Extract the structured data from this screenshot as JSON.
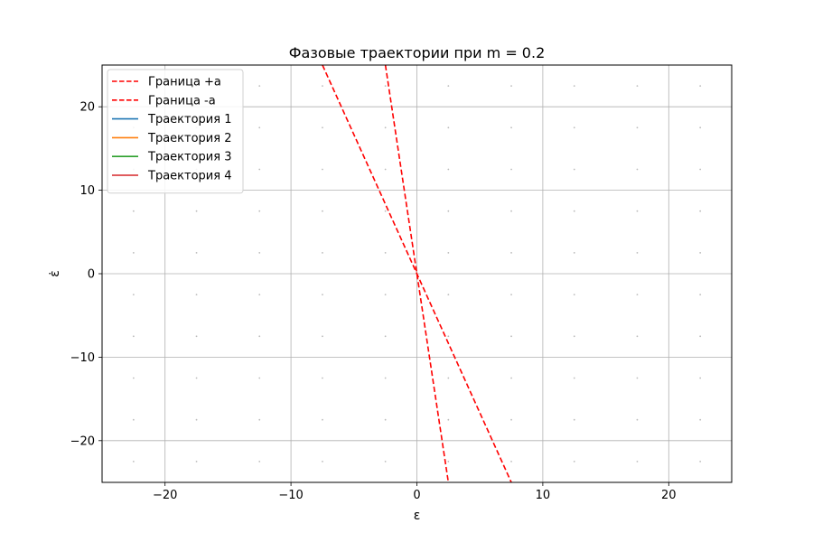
{
  "chart_data": {
    "type": "line",
    "title": "Фазовые траектории при m = 0.2",
    "xlabel": "ε",
    "ylabel": "ε̇",
    "xlim": [
      -25,
      25
    ],
    "ylim": [
      -25,
      25
    ],
    "xticks": [
      -20,
      -10,
      0,
      10,
      20
    ],
    "yticks": [
      -20,
      -10,
      0,
      10,
      20
    ],
    "xtick_labels": [
      "−20",
      "−10",
      "0",
      "10",
      "20"
    ],
    "ytick_labels": [
      "−20",
      "−10",
      "0",
      "10",
      "20"
    ],
    "grid": true,
    "legend_position": "top-left",
    "series": [
      {
        "name": "Граница +a",
        "style": "dashed",
        "color": "#ff0000",
        "x": [
          -7.5,
          7.5
        ],
        "y": [
          25,
          -25
        ]
      },
      {
        "name": "Граница -a",
        "style": "dashed",
        "color": "#ff0000",
        "x": [
          -2.5,
          2.5
        ],
        "y": [
          25,
          -25
        ]
      },
      {
        "name": "Траектория 1",
        "style": "solid",
        "color": "#1f77b4",
        "x": [],
        "y": []
      },
      {
        "name": "Траектория 2",
        "style": "solid",
        "color": "#ff7f0e",
        "x": [],
        "y": []
      },
      {
        "name": "Траектория 3",
        "style": "solid",
        "color": "#2ca02c",
        "x": [],
        "y": []
      },
      {
        "name": "Траектория 4",
        "style": "solid",
        "color": "#d62728",
        "x": [],
        "y": []
      }
    ],
    "vector_field": {
      "x": [
        -22.5,
        -17.5,
        -12.5,
        -7.5,
        -2.5,
        2.5,
        7.5,
        12.5,
        17.5,
        22.5
      ],
      "y": [
        -22.5,
        -17.5,
        -12.5,
        -7.5,
        -2.5,
        2.5,
        7.5,
        12.5,
        17.5,
        22.5
      ],
      "color": "#bbbbbb"
    }
  }
}
